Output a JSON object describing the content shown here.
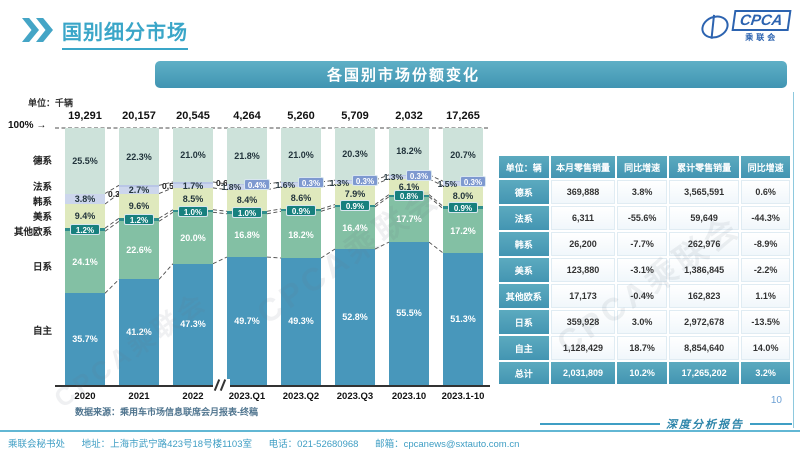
{
  "header": {
    "title": "国别细分市场"
  },
  "logo": {
    "acronym": "CPCA",
    "name": "乘联会"
  },
  "banner": {
    "title": "各国别市场份额变化"
  },
  "icons": {
    "arrow_right": "→"
  },
  "watermark": "CPCA乘联会",
  "chart_data": {
    "type": "bar",
    "subtype": "stacked-percent-column",
    "title": "各国别市场份额变化",
    "unit": "单位：千辆",
    "y_top_label": "100%",
    "grid": false,
    "categories": [
      "2020",
      "2021",
      "2022",
      "2023.Q1",
      "2023.Q2",
      "2023.Q3",
      "2023.10",
      "2023.1-10"
    ],
    "totals_thousand_units": [
      "19,291",
      "20,157",
      "20,545",
      "4,264",
      "5,260",
      "5,709",
      "2,032",
      "17,265"
    ],
    "axis_break_between": [
      "2022",
      "2023.Q1"
    ],
    "series": [
      {
        "name": "德系",
        "color": "#cde2da",
        "label_color": "#22343c",
        "values": [
          25.5,
          22.3,
          21.0,
          21.8,
          21.0,
          20.3,
          18.2,
          20.7
        ]
      },
      {
        "name": "法系",
        "color": "#b9c6e6",
        "box_color": "#7e99d0",
        "label_color": "#22343c",
        "values": [
          0.3,
          0.5,
          0.6,
          0.4,
          0.3,
          0.3,
          0.3,
          0.3
        ]
      },
      {
        "name": "韩系",
        "color": "#ccd6ec",
        "label_color": "#22343c",
        "values": [
          3.8,
          2.7,
          1.7,
          1.8,
          1.6,
          1.3,
          1.3,
          1.5
        ]
      },
      {
        "name": "美系",
        "color": "#dfe9bd",
        "label_color": "#22343c",
        "values": [
          9.4,
          9.6,
          8.5,
          8.4,
          8.6,
          7.9,
          6.1,
          8.0
        ]
      },
      {
        "name": "其他欧系",
        "color": "#2f8e8c",
        "box_color": "#17807e",
        "label_color": "#ffffff",
        "values": [
          1.2,
          1.2,
          1.0,
          1.0,
          0.9,
          0.9,
          0.8,
          0.9
        ]
      },
      {
        "name": "日系",
        "color": "#83c0a4",
        "label_color": "#ffffff",
        "values": [
          24.1,
          22.6,
          20.0,
          16.8,
          18.2,
          16.4,
          17.7,
          17.2
        ]
      },
      {
        "name": "自主",
        "color": "#4897bb",
        "label_color": "#ffffff",
        "values": [
          35.7,
          41.2,
          47.3,
          49.7,
          49.3,
          52.8,
          55.5,
          51.3
        ]
      }
    ]
  },
  "table": {
    "unit_header": "单位：辆",
    "headers": [
      "本月零售销量",
      "同比增速",
      "累计零售销量",
      "同比增速"
    ],
    "rows": [
      {
        "label": "德系",
        "values": [
          "369,888",
          "3.8%",
          "3,565,591",
          "0.6%"
        ]
      },
      {
        "label": "法系",
        "values": [
          "6,311",
          "-55.6%",
          "59,649",
          "-44.3%"
        ]
      },
      {
        "label": "韩系",
        "values": [
          "26,200",
          "-7.7%",
          "262,976",
          "-8.9%"
        ]
      },
      {
        "label": "美系",
        "values": [
          "123,880",
          "-3.1%",
          "1,386,845",
          "-2.2%"
        ]
      },
      {
        "label": "其他欧系",
        "values": [
          "17,173",
          "-0.4%",
          "162,823",
          "1.1%"
        ]
      },
      {
        "label": "日系",
        "values": [
          "359,928",
          "3.0%",
          "2,972,678",
          "-13.5%"
        ]
      },
      {
        "label": "自主",
        "values": [
          "1,128,429",
          "18.7%",
          "8,854,640",
          "14.0%"
        ]
      }
    ],
    "total": {
      "label": "总计",
      "values": [
        "2,031,809",
        "10.2%",
        "17,265,202",
        "3.2%"
      ]
    }
  },
  "footnotes": {
    "source": "数据来源：乘用车市场信息联席会月报表-终稿"
  },
  "footer": {
    "org": "乘联会秘书处",
    "address": "地址：上海市武宁路423号18号楼1103室",
    "phone": "电话：021-52680968",
    "email": "邮箱：cpcanews@sxtauto.com.cn",
    "report_label": "深度分析报告",
    "page_number": "10"
  }
}
